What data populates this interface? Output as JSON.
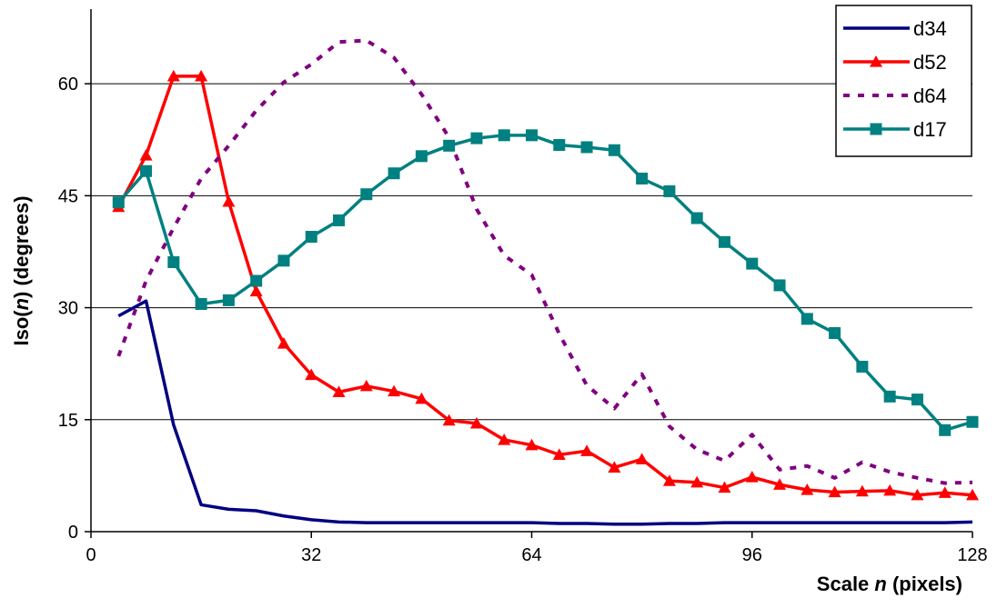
{
  "chart_data": {
    "type": "line",
    "xlabel": {
      "prefix": "Scale ",
      "var": "n",
      "suffix": " (pixels)"
    },
    "ylabel": {
      "prefix": "Iso(",
      "var": "n",
      "suffix": ")  (degrees)"
    },
    "xlim": [
      0,
      128
    ],
    "ylim": [
      0,
      70
    ],
    "xticks": [
      0,
      32,
      64,
      96,
      128
    ],
    "yticks": [
      0,
      15,
      30,
      45,
      60
    ],
    "grid": "horizontal",
    "legend": "top-right",
    "series": [
      {
        "name": "d34",
        "color": "#000080",
        "dash": "solid",
        "marker": "none",
        "x": [
          4,
          8,
          12,
          16,
          20,
          24,
          28,
          32,
          36,
          40,
          44,
          48,
          52,
          56,
          60,
          64,
          68,
          72,
          76,
          80,
          84,
          88,
          92,
          96,
          100,
          104,
          108,
          112,
          116,
          120,
          124,
          128
        ],
        "y": [
          28.9,
          30.9,
          14.3,
          3.6,
          3.0,
          2.8,
          2.1,
          1.6,
          1.3,
          1.2,
          1.2,
          1.2,
          1.2,
          1.2,
          1.2,
          1.2,
          1.1,
          1.1,
          1.0,
          1.0,
          1.1,
          1.1,
          1.2,
          1.2,
          1.2,
          1.2,
          1.2,
          1.2,
          1.2,
          1.2,
          1.2,
          1.3
        ]
      },
      {
        "name": "d52",
        "color": "#ff0000",
        "dash": "solid",
        "marker": "triangle",
        "x": [
          4,
          8,
          12,
          16,
          20,
          24,
          28,
          32,
          36,
          40,
          44,
          48,
          52,
          56,
          60,
          64,
          68,
          72,
          76,
          80,
          84,
          88,
          92,
          96,
          100,
          104,
          108,
          112,
          116,
          120,
          124,
          128
        ],
        "y": [
          43.5,
          50.4,
          61.0,
          61.0,
          44.2,
          32.2,
          25.2,
          21.0,
          18.7,
          19.5,
          18.8,
          17.8,
          14.9,
          14.5,
          12.3,
          11.6,
          10.3,
          10.8,
          8.6,
          9.7,
          6.8,
          6.6,
          5.9,
          7.3,
          6.3,
          5.6,
          5.3,
          5.4,
          5.5,
          4.9,
          5.2,
          4.9
        ]
      },
      {
        "name": "d64",
        "color": "#800080",
        "dash": "dashed",
        "marker": "none",
        "x": [
          4,
          8,
          12,
          16,
          20,
          24,
          28,
          32,
          36,
          40,
          44,
          48,
          52,
          56,
          60,
          64,
          68,
          72,
          76,
          80,
          84,
          88,
          92,
          96,
          100,
          104,
          108,
          112,
          116,
          120,
          124,
          128
        ],
        "y": [
          23.5,
          33.6,
          40.7,
          47.3,
          51.7,
          56.4,
          60.2,
          62.6,
          65.6,
          65.8,
          63.5,
          58.6,
          52.8,
          43.2,
          37.0,
          34.4,
          26.5,
          19.6,
          16.5,
          21.1,
          14.1,
          11.0,
          9.5,
          13.0,
          8.3,
          8.8,
          7.2,
          9.3,
          8.0,
          7.2,
          6.5,
          6.6
        ]
      },
      {
        "name": "d17",
        "color": "#008080",
        "dash": "solid",
        "marker": "square",
        "x": [
          4,
          8,
          12,
          16,
          20,
          24,
          28,
          32,
          36,
          40,
          44,
          48,
          52,
          56,
          60,
          64,
          68,
          72,
          76,
          80,
          84,
          88,
          92,
          96,
          100,
          104,
          108,
          112,
          116,
          120,
          124,
          128
        ],
        "y": [
          44.1,
          48.3,
          36.1,
          30.5,
          31.0,
          33.6,
          36.3,
          39.5,
          41.7,
          45.2,
          48.0,
          50.3,
          51.7,
          52.7,
          53.1,
          53.1,
          51.8,
          51.5,
          51.1,
          47.3,
          45.6,
          42.0,
          38.8,
          35.9,
          33.0,
          28.5,
          26.6,
          22.1,
          18.1,
          17.7,
          13.6,
          14.7
        ]
      }
    ]
  }
}
